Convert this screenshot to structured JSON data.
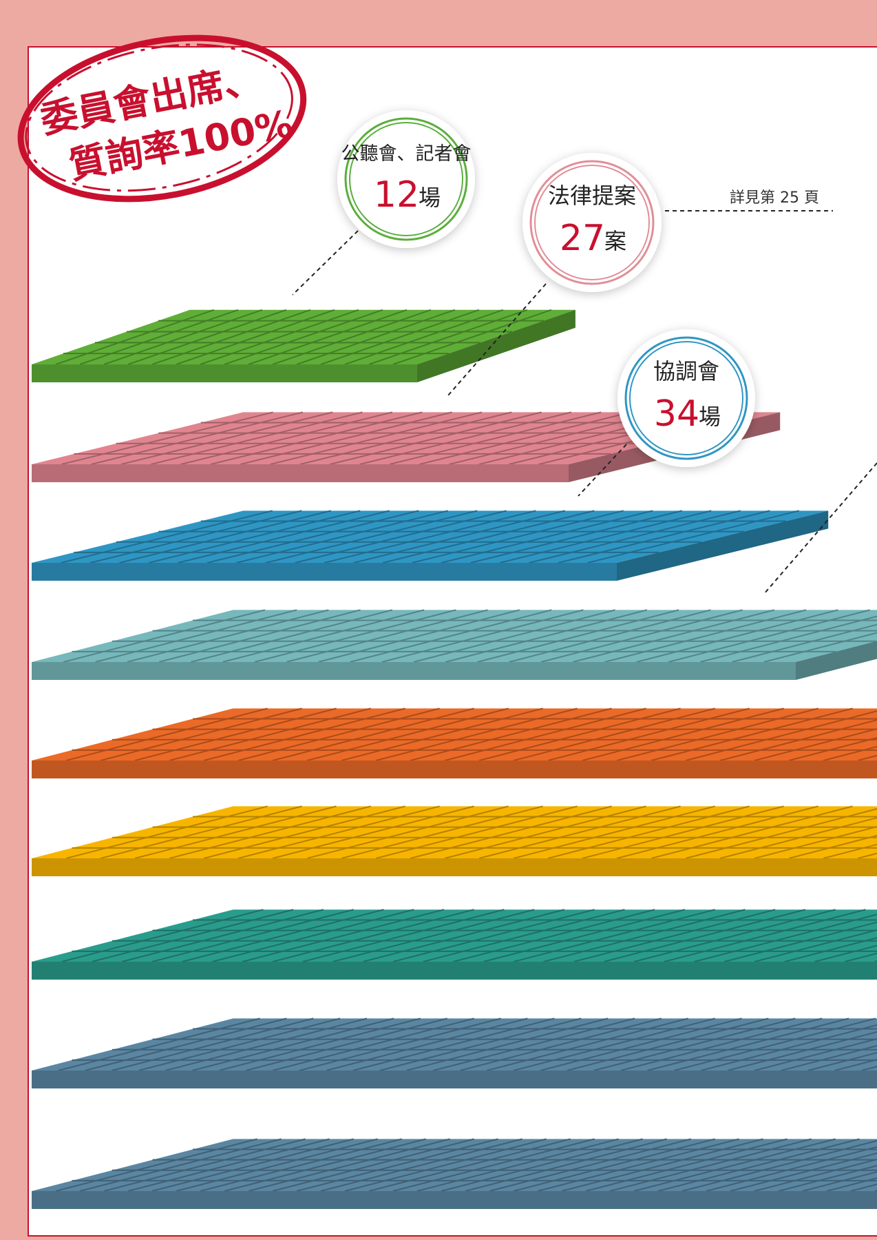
{
  "stamp": {
    "line1": "委員會出席、",
    "line2": "質詢率100%",
    "color": "#c8102e"
  },
  "reference_note": "詳見第 25 頁",
  "chart_data": {
    "type": "bar",
    "style": "isometric stacked slabs",
    "title": "",
    "categories": [
      "公聽會、記者會",
      "法律提案",
      "協調會",
      "",
      "",
      "",
      "",
      "",
      ""
    ],
    "units": [
      "場",
      "案",
      "場",
      "",
      "",
      "",
      "",
      "",
      ""
    ],
    "values": [
      12,
      27,
      34,
      null,
      null,
      null,
      null,
      null,
      null
    ],
    "colors": [
      "#5fae37",
      "#e08590",
      "#2f96c4",
      "#76b8bb",
      "#eb6a27",
      "#f8b500",
      "#2a9c8c",
      "#5a86a2",
      "#5a86a2"
    ],
    "label_ring_colors": [
      "#5aae3c",
      "#e08e98",
      "#2f96c4"
    ],
    "value_color": "#c8102e",
    "grid": true,
    "legend": "none"
  }
}
